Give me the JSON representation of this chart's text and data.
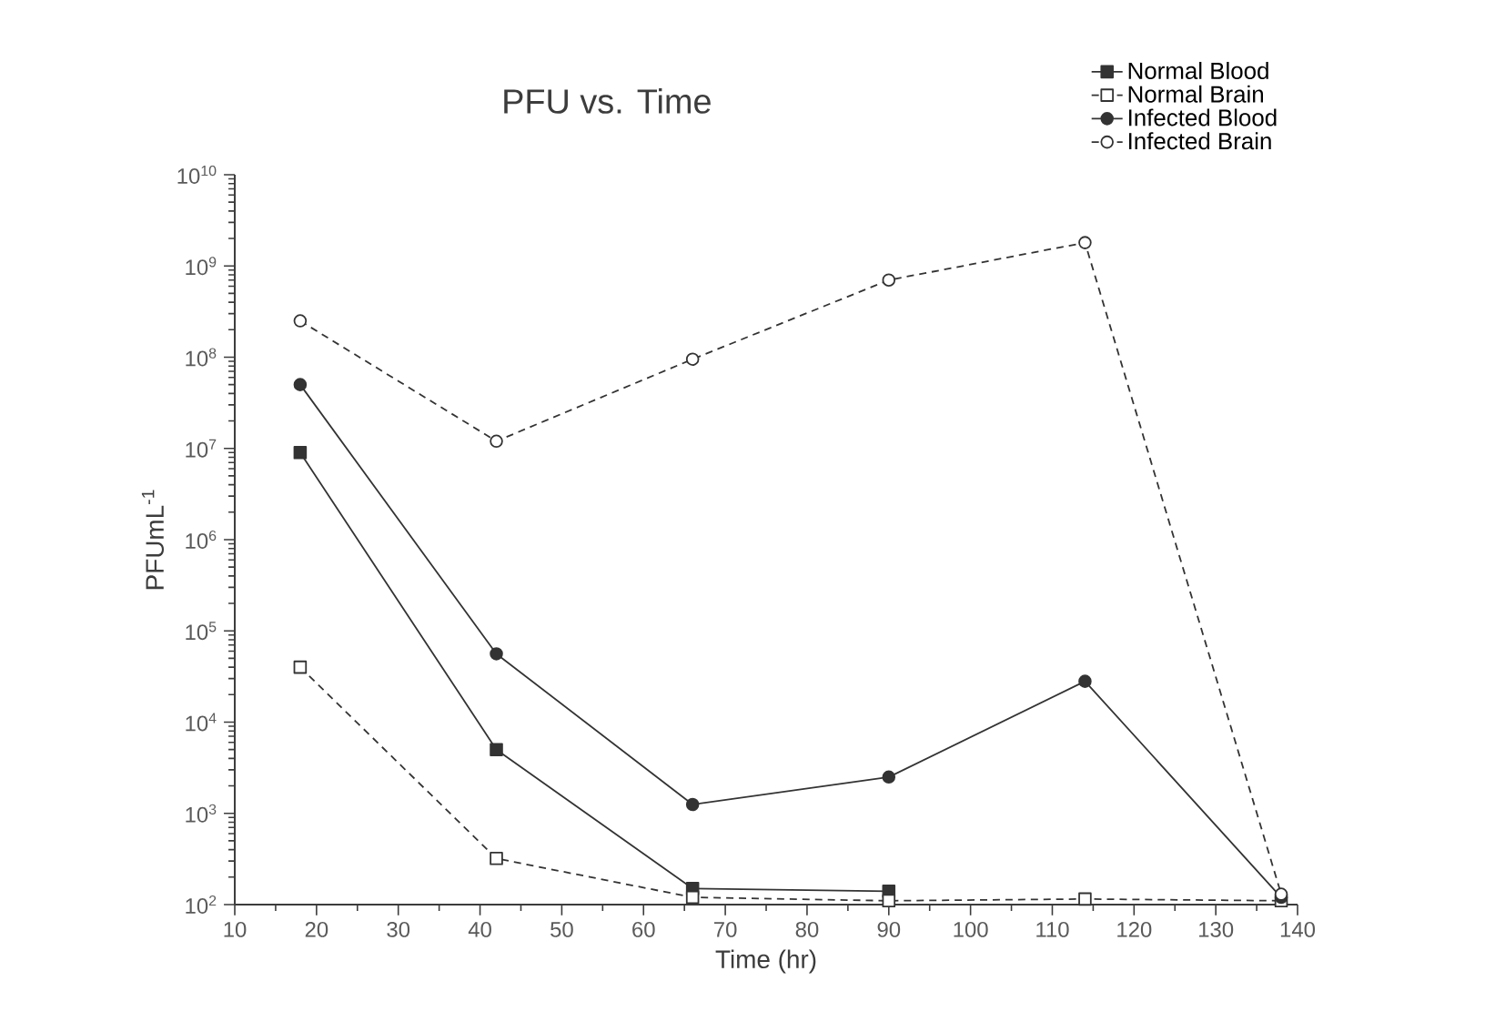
{
  "chart_data": {
    "type": "line",
    "title": "PFU vs. Time",
    "xlabel": "Time (hr)",
    "ylabel": "PFUmL$^{-1}$",
    "x": [
      18,
      42,
      66,
      90,
      114,
      138
    ],
    "series": [
      {
        "name": "Normal Blood",
        "color": "#333333",
        "values": [
          9000000,
          5000,
          150,
          140,
          null,
          null
        ],
        "marker": "square",
        "line_style": "solid"
      },
      {
        "name": "Normal Brain",
        "color": "#333333",
        "values": [
          40000,
          320,
          120,
          110,
          115,
          110
        ],
        "marker": "square",
        "line_style": "dashed"
      },
      {
        "name": "Infected Blood",
        "color": "#333333",
        "values": [
          50000000,
          56000,
          1250,
          2500,
          28000,
          120
        ],
        "marker": "circle",
        "line_style": "solid"
      },
      {
        "name": "Infected Brain",
        "color": "#333333",
        "values": [
          250000000,
          12000000,
          95000000,
          700000000,
          1800000000,
          130
        ],
        "marker": "circle",
        "line_style": "dashed"
      }
    ],
    "xlim": [
      10,
      140
    ],
    "xticks": [
      10,
      20,
      30,
      40,
      50,
      60,
      70,
      80,
      90,
      100,
      110,
      120,
      130,
      140
    ],
    "ylim": [
      100,
      10000000000
    ],
    "yticks": [
      {
        "value": 100,
        "label": "10$^{2}$"
      },
      {
        "value": 1000,
        "label": "10$^{3}$"
      },
      {
        "value": 10000,
        "label": "10$^{4}$"
      },
      {
        "value": 100000,
        "label": "10$^{5}$"
      },
      {
        "value": 1000000,
        "label": "10$^{6}$"
      },
      {
        "value": 10000000,
        "label": "10$^{7}$"
      },
      {
        "value": 100000000,
        "label": "10$^{8}$"
      },
      {
        "value": 1000000000,
        "label": "10$^{9}$"
      },
      {
        "value": 10000000000,
        "label": "10$^{10}$"
      }
    ],
    "log": "y",
    "grid": false,
    "legend": "top right"
  }
}
